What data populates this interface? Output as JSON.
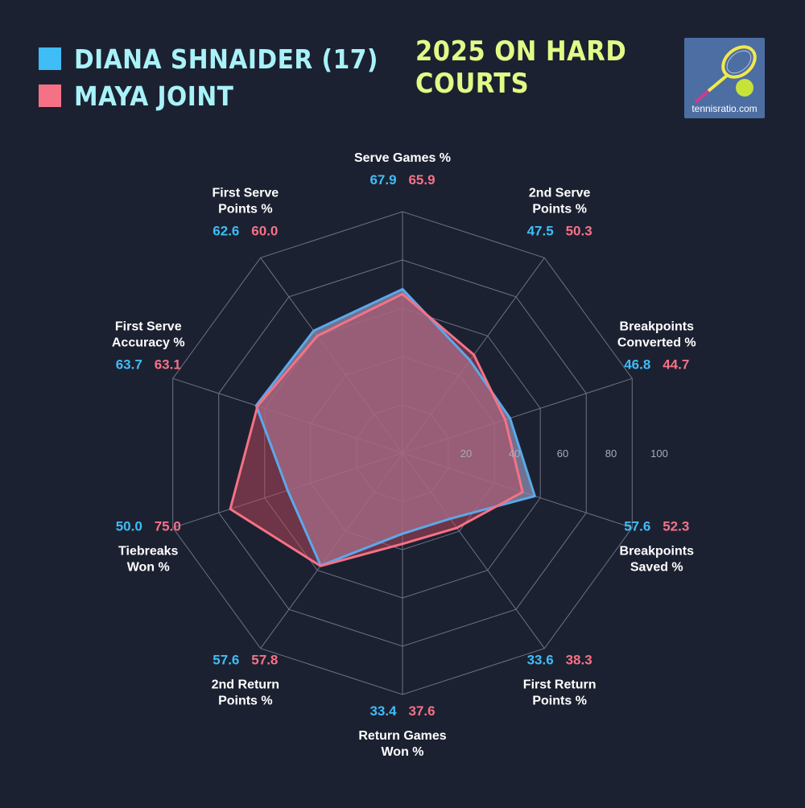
{
  "legend": [
    {
      "name": "DIANA SHNAIDER (17)",
      "color": "#3ebdf7"
    },
    {
      "name": "MAYA JOINT",
      "color": "#f57286"
    }
  ],
  "subtitle": "2025 ON HARD COURTS",
  "logo": {
    "text": "tennisratio.com",
    "icon": "tennis-racket-ball-icon"
  },
  "chart_data": {
    "type": "radar",
    "axes": [
      {
        "lines": [
          "Serve Games %"
        ]
      },
      {
        "lines": [
          "2nd Serve",
          "Points %"
        ]
      },
      {
        "lines": [
          "Breakpoints",
          "Converted %"
        ]
      },
      {
        "lines": [
          "Breakpoints",
          "Saved %"
        ]
      },
      {
        "lines": [
          "First Return",
          "Points %"
        ]
      },
      {
        "lines": [
          "Return Games",
          "Won %"
        ]
      },
      {
        "lines": [
          "2nd Return",
          "Points %"
        ]
      },
      {
        "lines": [
          "Tiebreaks",
          "Won %"
        ]
      },
      {
        "lines": [
          "First Serve",
          "Accuracy %"
        ]
      },
      {
        "lines": [
          "First Serve",
          "Points %"
        ]
      }
    ],
    "series": [
      {
        "name": "DIANA SHNAIDER (17)",
        "color": "#3ebdf7",
        "line_color": "#5aa9ea",
        "fill": "#8c8fb0",
        "values": [
          67.9,
          47.5,
          46.8,
          57.6,
          33.6,
          33.4,
          57.6,
          50.0,
          63.7,
          62.6
        ],
        "display": [
          "67.9",
          "47.5",
          "46.8",
          "57.6",
          "33.6",
          "33.4",
          "57.6",
          "50.0",
          "63.7",
          "62.6"
        ]
      },
      {
        "name": "MAYA JOINT",
        "color": "#f57286",
        "line_color": "#f57286",
        "fill": "#c0485d",
        "values": [
          65.9,
          50.3,
          44.7,
          52.3,
          38.3,
          37.6,
          57.8,
          75.0,
          63.1,
          60.0
        ],
        "display": [
          "65.9",
          "50.3",
          "44.7",
          "52.3",
          "38.3",
          "37.6",
          "57.8",
          "75.0",
          "63.1",
          "60.0"
        ]
      }
    ],
    "rlim": [
      0,
      100
    ],
    "ticks": [
      20,
      40,
      60,
      80,
      100
    ],
    "tick_labels": [
      "20",
      "40",
      "60",
      "80",
      "100"
    ],
    "grid": true
  }
}
